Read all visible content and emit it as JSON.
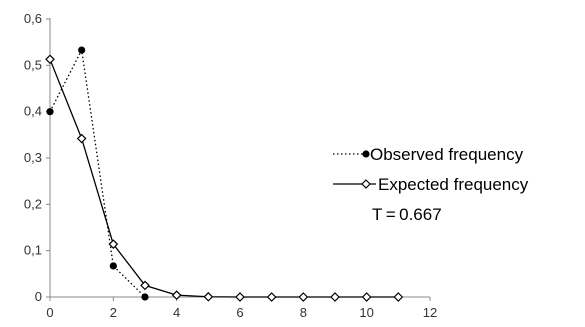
{
  "chart_data": {
    "type": "line",
    "title": "",
    "xlabel": "",
    "ylabel": "",
    "xlim": [
      0,
      12
    ],
    "ylim": [
      0,
      0.6
    ],
    "x_ticks": [
      0,
      2,
      4,
      6,
      8,
      10,
      12
    ],
    "y_ticks": [
      0,
      0.1,
      0.2,
      0.3,
      0.4,
      0.5,
      0.6
    ],
    "x_tick_labels": [
      "0",
      "2",
      "4",
      "6",
      "8",
      "10",
      "12"
    ],
    "y_tick_labels": [
      "0",
      "0,1",
      "0,2",
      "0,3",
      "0,4",
      "0,5",
      "0,6"
    ],
    "grid": false,
    "legend_position": "right",
    "series": [
      {
        "name": "Observed frequency",
        "style": "dotted",
        "marker": "filled-circle",
        "color": "#000000",
        "x": [
          0,
          1,
          2,
          3
        ],
        "values": [
          0.4,
          0.533,
          0.067,
          0.0
        ]
      },
      {
        "name": "Expected frequency",
        "style": "solid",
        "marker": "open-diamond",
        "color": "#000000",
        "x": [
          0,
          1,
          2,
          3,
          4,
          5,
          6,
          7,
          8,
          9,
          10,
          11
        ],
        "values": [
          0.513,
          0.342,
          0.114,
          0.025,
          0.004,
          0.0005,
          0.0,
          0.0,
          0.0,
          0.0,
          0.0,
          0.0
        ]
      }
    ],
    "annotation": "T = 0.667"
  }
}
